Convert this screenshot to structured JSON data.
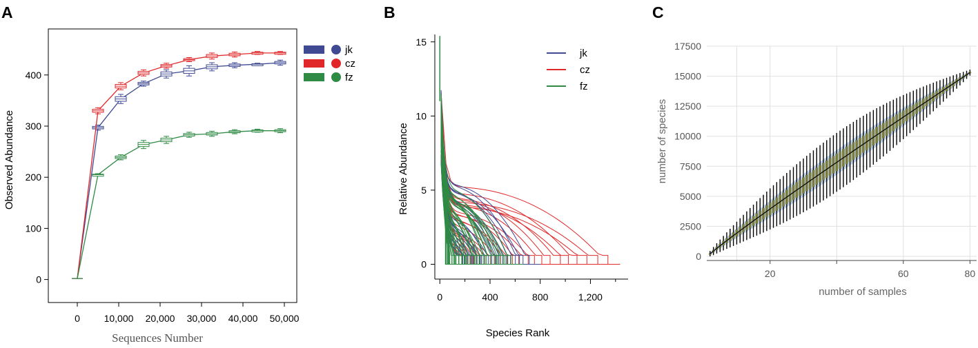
{
  "chart_data": [
    {
      "panel": "A",
      "type": "line",
      "xlabel": "Sequences Number",
      "ylabel": "Observed Abundance",
      "xlim": [
        -7000,
        53000
      ],
      "ylim": [
        -45,
        490
      ],
      "x_ticks": [
        0,
        10000,
        20000,
        30000,
        40000,
        50000
      ],
      "x_tick_labels": [
        "0",
        "10,000",
        "20,000",
        "30,000",
        "40,000",
        "50,000"
      ],
      "y_ticks": [
        0,
        100,
        200,
        300,
        400
      ],
      "x": [
        0,
        5000,
        10500,
        16000,
        21500,
        27000,
        32500,
        38000,
        43500,
        49000
      ],
      "series": [
        {
          "name": "jk",
          "color": "#3f4a93",
          "values": [
            2,
            297,
            353,
            383,
            402,
            408,
            416,
            419,
            421,
            424
          ],
          "spread": [
            0,
            5,
            9,
            5,
            8,
            10,
            8,
            5,
            2,
            5
          ]
        },
        {
          "name": "cz",
          "color": "#e0282a",
          "values": [
            2,
            330,
            378,
            404,
            418,
            430,
            437,
            440,
            443,
            443
          ],
          "spread": [
            0,
            6,
            7,
            6,
            5,
            4,
            6,
            5,
            3,
            3
          ]
        },
        {
          "name": "fz",
          "color": "#2f8a44",
          "values": [
            2,
            205,
            239,
            264,
            273,
            283,
            285,
            289,
            291,
            291
          ],
          "spread": [
            0,
            2,
            5,
            8,
            7,
            5,
            5,
            4,
            3,
            4
          ]
        }
      ],
      "legend": [
        "jk",
        "cz",
        "fz"
      ],
      "legend_position": "top-right"
    },
    {
      "panel": "B",
      "type": "line",
      "xlabel": "Species Rank",
      "ylabel": "Relative Abundance",
      "xlim": [
        -40,
        1500
      ],
      "ylim": [
        -1,
        15.5
      ],
      "x_ticks": [
        0,
        400,
        800,
        1200
      ],
      "x_tick_labels": [
        "0",
        "400",
        "800",
        "1,200"
      ],
      "x_minor_ticks": [
        200,
        600,
        1000,
        1400
      ],
      "y_ticks": [
        0,
        5,
        10,
        15
      ],
      "series": [
        {
          "name": "jk",
          "color": "#3f4a93",
          "count": 25,
          "end_rank_range": [
            180,
            700
          ]
        },
        {
          "name": "cz",
          "color": "#e0282a",
          "count": 25,
          "end_rank_range": [
            200,
            1330
          ]
        },
        {
          "name": "fz",
          "color": "#2f8a44",
          "count": 45,
          "end_rank_range": [
            40,
            560
          ]
        }
      ],
      "legend": [
        "jk",
        "cz",
        "fz"
      ],
      "legend_position": "top-right"
    },
    {
      "panel": "C",
      "type": "line",
      "xlabel": "number of samples",
      "ylabel": "number of species",
      "xlim": [
        1,
        82
      ],
      "ylim": [
        0,
        17500
      ],
      "x_ticks": [
        20,
        60,
        80
      ],
      "x_tick_labels": [
        "20",
        "60",
        "80"
      ],
      "x_minor_ticks": [
        40
      ],
      "y_ticks": [
        0,
        2500,
        5000,
        7500,
        10000,
        12500,
        15000,
        17500
      ],
      "samples_range": [
        2,
        80
      ],
      "species_at_min": 200,
      "species_at_max": 15300,
      "curve_exponent": 0.95,
      "line_color": "#000000",
      "box_color": "#7a7a3c",
      "band_color": "#a8c4e4"
    }
  ]
}
